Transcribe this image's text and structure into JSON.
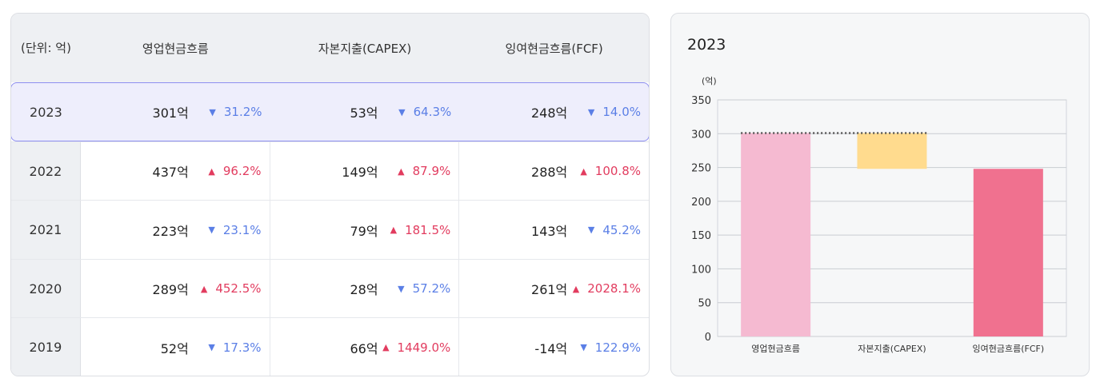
{
  "table": {
    "unit_label": "(단위: 억)",
    "columns": [
      "영업현금흐름",
      "자본지출(CAPEX)",
      "잉여현금흐름(FCF)"
    ],
    "rows": [
      {
        "year": "2023",
        "cells": [
          {
            "value": "301억",
            "dir": "down",
            "change": "31.2%"
          },
          {
            "value": "53억",
            "dir": "down",
            "change": "64.3%"
          },
          {
            "value": "248억",
            "dir": "down",
            "change": "14.0%"
          }
        ]
      },
      {
        "year": "2022",
        "cells": [
          {
            "value": "437억",
            "dir": "up",
            "change": "96.2%"
          },
          {
            "value": "149억",
            "dir": "up",
            "change": "87.9%"
          },
          {
            "value": "288억",
            "dir": "up",
            "change": "100.8%"
          }
        ]
      },
      {
        "year": "2021",
        "cells": [
          {
            "value": "223억",
            "dir": "down",
            "change": "23.1%"
          },
          {
            "value": "79억",
            "dir": "up",
            "change": "181.5%"
          },
          {
            "value": "143억",
            "dir": "down",
            "change": "45.2%"
          }
        ]
      },
      {
        "year": "2020",
        "cells": [
          {
            "value": "289억",
            "dir": "up",
            "change": "452.5%"
          },
          {
            "value": "28억",
            "dir": "down",
            "change": "57.2%"
          },
          {
            "value": "261억",
            "dir": "up",
            "change": "2028.1%"
          }
        ]
      },
      {
        "year": "2019",
        "cells": [
          {
            "value": "52억",
            "dir": "down",
            "change": "17.3%"
          },
          {
            "value": "66억",
            "dir": "up",
            "change": "1449.0%"
          },
          {
            "value": "-14억",
            "dir": "down",
            "change": "122.9%"
          }
        ]
      }
    ],
    "colors": {
      "up": "#e23c5f",
      "down": "#5b7fe6",
      "highlight": "#eeeefc"
    }
  },
  "chart_data": {
    "type": "bar",
    "title": "2023",
    "ylabel": "(억)",
    "ylim": [
      0,
      350
    ],
    "yticks": [
      0,
      50,
      100,
      150,
      200,
      250,
      300,
      350
    ],
    "categories": [
      "영업현금흐름",
      "자본지출(CAPEX)",
      "잉여현금흐름(FCF)"
    ],
    "bars": [
      {
        "category": "영업현금흐름",
        "low": 0,
        "high": 301,
        "color": "#f5bad1"
      },
      {
        "category": "자본지출(CAPEX)",
        "low": 248,
        "high": 301,
        "color": "#ffdb8e"
      },
      {
        "category": "잉여현금흐름(FCF)",
        "low": 0,
        "high": 248,
        "color": "#f0718f"
      }
    ],
    "connector_value": 301,
    "grid": true
  }
}
